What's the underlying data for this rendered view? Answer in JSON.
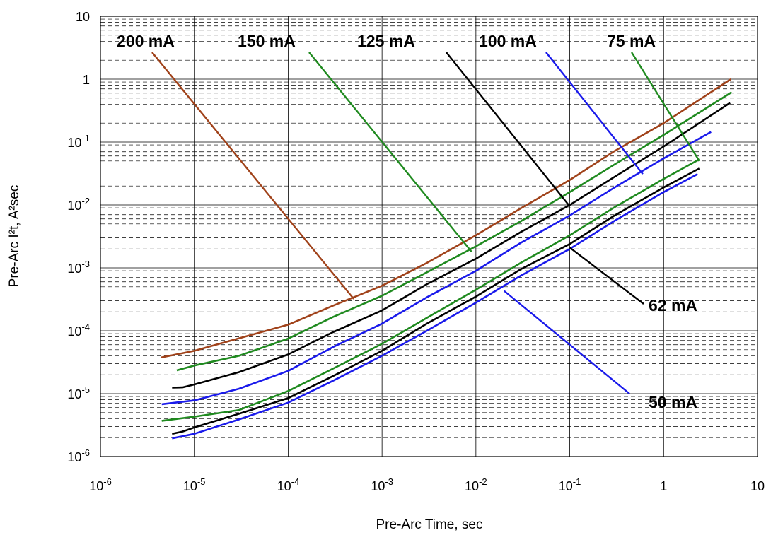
{
  "chart_data": {
    "type": "line",
    "title": "",
    "xlabel": "Pre-Arc Time, sec",
    "ylabel": "Pre-Arc I²t,  A²sec",
    "x_scale": "log",
    "y_scale": "log",
    "xlim": [
      1e-06,
      10
    ],
    "ylim": [
      1e-06,
      10
    ],
    "grid": true,
    "x_tick_labels": [
      {
        "base": "10",
        "exp": "-6"
      },
      {
        "base": "10",
        "exp": "-5"
      },
      {
        "base": "10",
        "exp": "-4"
      },
      {
        "base": "10",
        "exp": "-3"
      },
      {
        "base": "10",
        "exp": "-2"
      },
      {
        "base": "10",
        "exp": "-1"
      },
      {
        "base": "1",
        "exp": ""
      },
      {
        "base": "10",
        "exp": ""
      }
    ],
    "y_tick_labels": [
      {
        "base": "10",
        "exp": "-6"
      },
      {
        "base": "10",
        "exp": "-5"
      },
      {
        "base": "10",
        "exp": "-4"
      },
      {
        "base": "10",
        "exp": "-3"
      },
      {
        "base": "10",
        "exp": "-2"
      },
      {
        "base": "10",
        "exp": "-1"
      },
      {
        "base": "1",
        "exp": ""
      },
      {
        "base": "10",
        "exp": ""
      }
    ],
    "series": [
      {
        "name": "200 mA",
        "color": "#a0421a",
        "x": [
          4.4e-06,
          1e-05,
          3e-05,
          0.0001,
          0.0003,
          0.001,
          0.003,
          0.01,
          0.03,
          0.1,
          0.3,
          1,
          5.2
        ],
        "y": [
          3.75e-05,
          4.8e-05,
          7.6e-05,
          0.000125,
          0.00025,
          0.00052,
          0.0012,
          0.0033,
          0.0088,
          0.025,
          0.072,
          0.2,
          1.0
        ]
      },
      {
        "name": "150 mA",
        "color": "#1f8a1f",
        "x": [
          6.5e-06,
          1e-05,
          3e-05,
          0.0001,
          0.0003,
          0.001,
          0.003,
          0.01,
          0.03,
          0.1,
          0.3,
          1,
          5.3
        ],
        "y": [
          2.35e-05,
          2.8e-05,
          4e-05,
          7.5e-05,
          0.000165,
          0.00036,
          0.00085,
          0.0022,
          0.0055,
          0.016,
          0.044,
          0.13,
          0.62
        ]
      },
      {
        "name": "125 mA",
        "color": "#000000",
        "x": [
          5.8e-06,
          7.5e-06,
          1e-05,
          3e-05,
          0.0001,
          0.0003,
          0.001,
          0.003,
          0.01,
          0.03,
          0.1,
          0.3,
          1,
          5.1
        ],
        "y": [
          1.25e-05,
          1.26e-05,
          1.4e-05,
          2.2e-05,
          4.2e-05,
          9.5e-05,
          0.00021,
          0.00055,
          0.0014,
          0.0037,
          0.01,
          0.028,
          0.085,
          0.42
        ]
      },
      {
        "name": "100 mA",
        "color": "#1a1aeb",
        "x": [
          4.5e-06,
          1e-05,
          3e-05,
          0.0001,
          0.0003,
          0.001,
          0.003,
          0.01,
          0.03,
          0.1,
          0.3,
          1,
          3.2
        ],
        "y": [
          6.8e-06,
          7.8e-06,
          1.2e-05,
          2.3e-05,
          5.5e-05,
          0.00013,
          0.00034,
          0.0009,
          0.0025,
          0.0068,
          0.019,
          0.055,
          0.145
        ]
      },
      {
        "name": "75 mA",
        "color": "#1f8a1f",
        "x": [
          4.5e-06,
          1e-05,
          3e-05,
          0.0001,
          0.0003,
          0.001,
          0.003,
          0.01,
          0.03,
          0.1,
          0.3,
          1,
          2.4
        ],
        "y": [
          3.7e-06,
          4.3e-06,
          5.5e-06,
          1.1e-05,
          2.5e-05,
          6.2e-05,
          0.00016,
          0.00045,
          0.0012,
          0.0033,
          0.0092,
          0.026,
          0.053
        ]
      },
      {
        "name": "62 mA",
        "color": "#000000",
        "x": [
          5.8e-06,
          7.5e-06,
          1e-05,
          3e-05,
          0.0001,
          0.0003,
          0.001,
          0.003,
          0.01,
          0.03,
          0.1,
          0.3,
          1,
          2.4
        ],
        "y": [
          2.3e-06,
          2.5e-06,
          2.9e-06,
          4.8e-06,
          8.5e-06,
          1.9e-05,
          4.8e-05,
          0.00013,
          0.00035,
          0.00095,
          0.0024,
          0.0068,
          0.019,
          0.038
        ]
      },
      {
        "name": "50 mA",
        "color": "#1a1aeb",
        "x": [
          5.8e-06,
          1e-05,
          3e-05,
          0.0001,
          0.0003,
          0.001,
          0.003,
          0.01,
          0.03,
          0.1,
          0.3,
          1,
          2.3
        ],
        "y": [
          1.95e-06,
          2.3e-06,
          3.9e-06,
          7.2e-06,
          1.6e-05,
          4e-05,
          0.0001,
          0.00028,
          0.00075,
          0.002,
          0.0056,
          0.016,
          0.031
        ]
      }
    ],
    "labels": [
      {
        "text": "200 mA",
        "color": "#a0421a",
        "tip": [
          0.0005,
          0.00032
        ]
      },
      {
        "text": "150 mA",
        "color": "#1f8a1f",
        "tip": [
          0.009,
          0.0018
        ]
      },
      {
        "text": "125 mA",
        "color": "#000000",
        "tip": [
          0.1,
          0.0095
        ]
      },
      {
        "text": "100 mA",
        "color": "#1a1aeb",
        "tip": [
          0.6,
          0.031
        ]
      },
      {
        "text": "75 mA",
        "color": "#1f8a1f",
        "tip": [
          2.4,
          0.05
        ]
      },
      {
        "text": "62 mA",
        "color": "#000000",
        "tip": [
          0.1,
          0.0021
        ]
      },
      {
        "text": "50 mA",
        "color": "#1a1aeb",
        "tip": [
          0.02,
          0.00043
        ]
      }
    ]
  }
}
